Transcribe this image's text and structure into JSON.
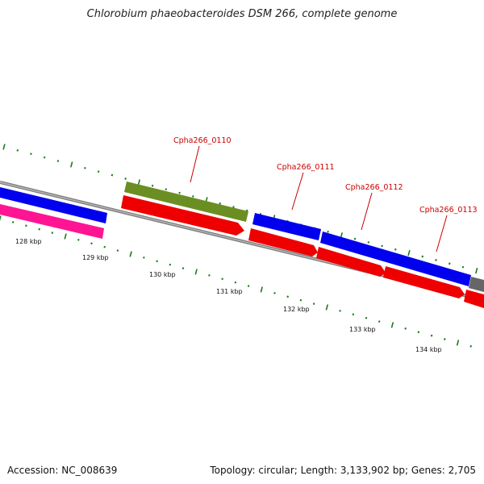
{
  "title": "Chlorobium phaeobacteroides DSM 266, complete genome",
  "footer": {
    "accession": "Accession: NC_008639",
    "summary": "Topology: circular; Length: 3,133,902 bp; Genes: 2,705"
  },
  "colors": {
    "backbone": "#808080",
    "tick": "#1a7a1a",
    "label": "#cc0000",
    "blue": "#0000ee",
    "red": "#ee0000",
    "magenta": "#ff1493",
    "olive": "#6b8e23",
    "gray": "#666666"
  },
  "scale_ticks": [
    "128 kbp",
    "129 kbp",
    "130 kbp",
    "131 kbp",
    "132 kbp",
    "133 kbp",
    "134 kbp"
  ],
  "gene_labels": [
    "Cpha266_0110",
    "Cpha266_0111",
    "Cpha266_0112",
    "Cpha266_0113"
  ]
}
